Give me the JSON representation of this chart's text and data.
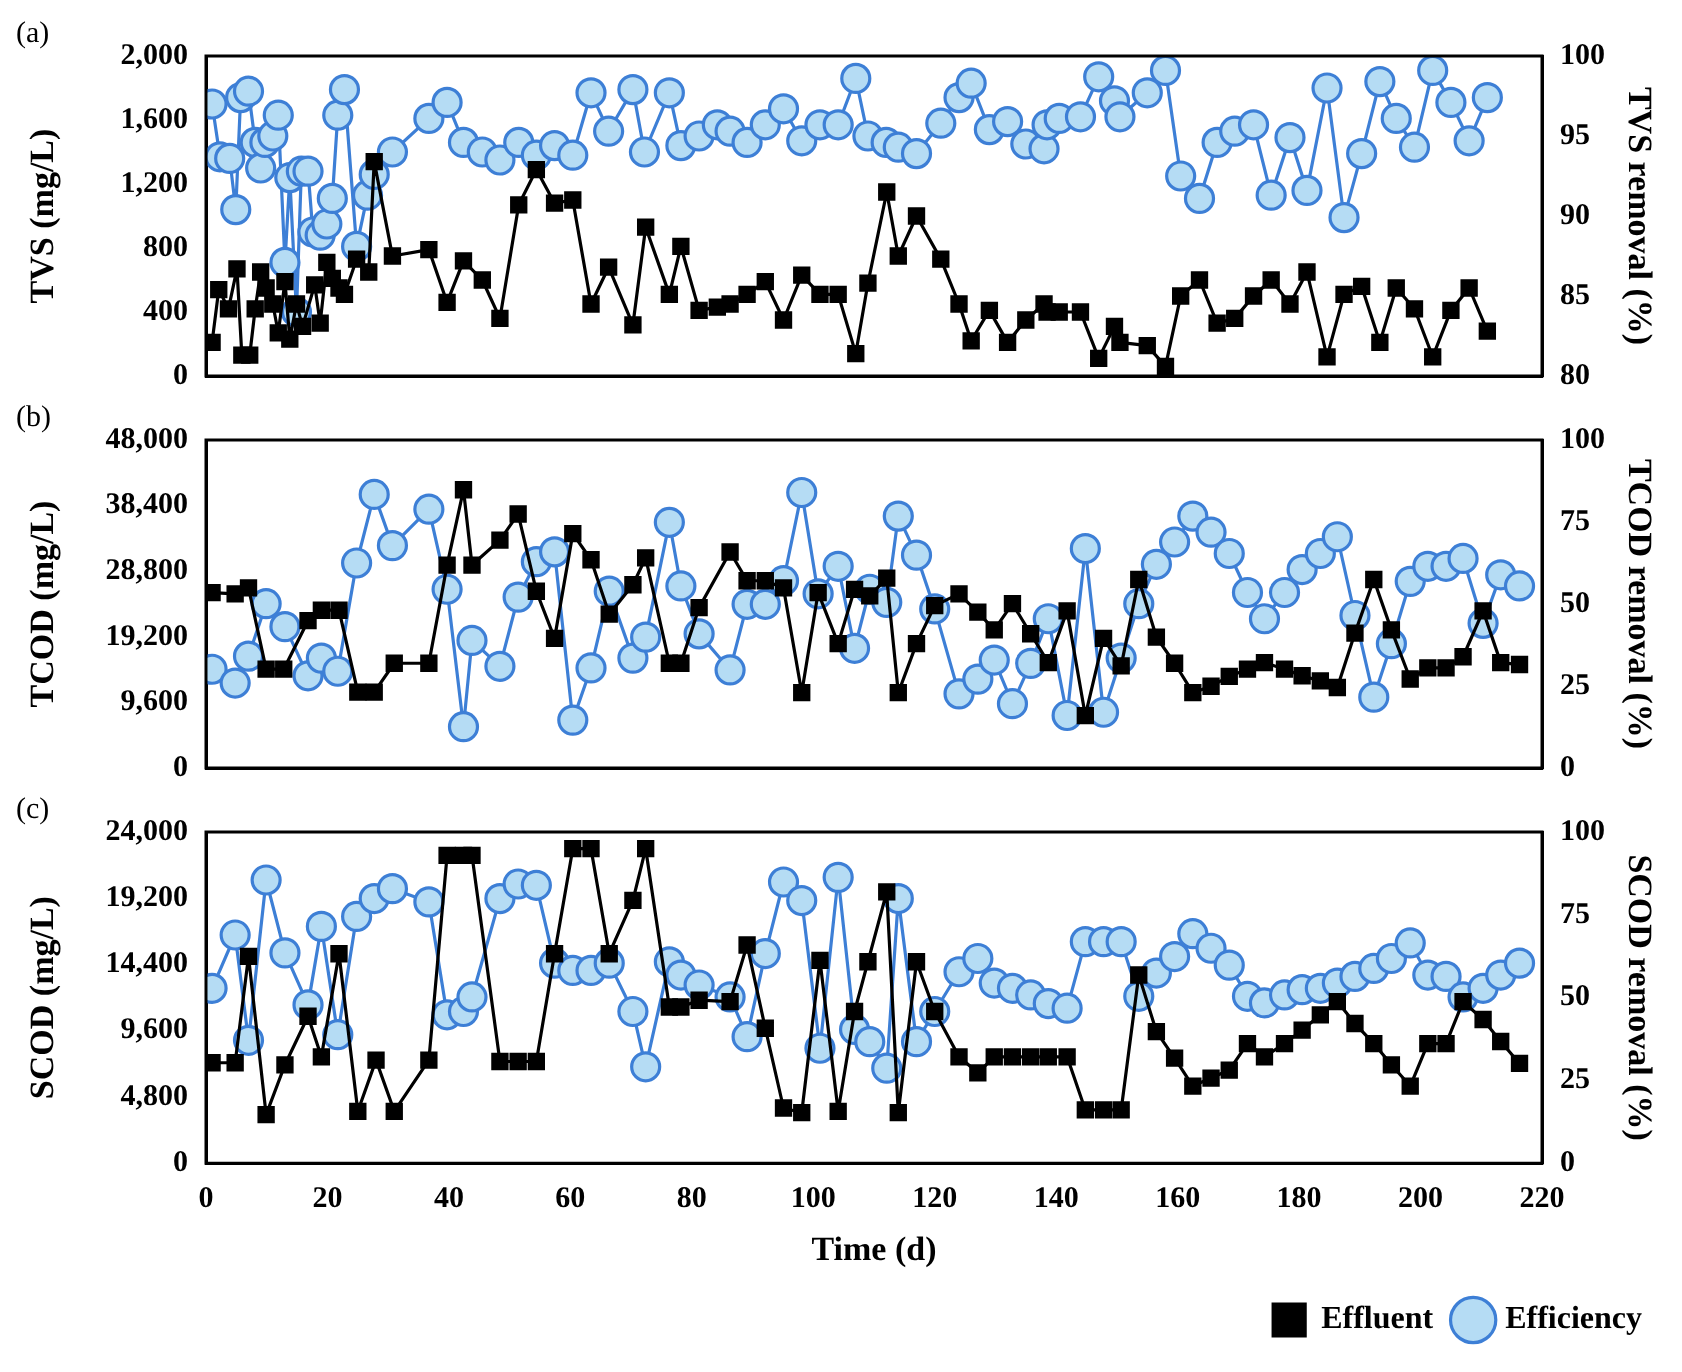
{
  "chart_data": [
    {
      "type": "line",
      "title": "(a)",
      "ylabel": "TVS (mg/L)",
      "y2label": "TVS removal (%)",
      "xlim": [
        0,
        220
      ],
      "xticks": [
        0,
        20,
        40,
        60,
        80,
        100,
        120,
        140,
        160,
        180,
        200,
        220
      ],
      "ylim": [
        0,
        2000
      ],
      "yticks": [
        0,
        400,
        800,
        {
          "value": 1200,
          "label": "1,200"
        },
        {
          "value": 1600,
          "label": "1,600"
        },
        {
          "value": 2000,
          "label": "2,000"
        }
      ],
      "y2lim": [
        80,
        100
      ],
      "y2ticks": [
        80,
        85,
        90,
        95,
        100
      ],
      "tick_labels": "y",
      "series": [
        {
          "color": "#000000",
          "marker": "square",
          "x": [
            1,
            2.1,
            3.7,
            5.1,
            5.9,
            7.2,
            8.1,
            9,
            9.9,
            11,
            11.9,
            13,
            13.8,
            14.9,
            15.9,
            17.9,
            18.8,
            19.9,
            20.8,
            21.9,
            22.8,
            24.8,
            26.8,
            27.7,
            30.7,
            36.7,
            39.7,
            42.4,
            45.5,
            48.4,
            51.5,
            54.4,
            57.4,
            60.4,
            63.4,
            66.3,
            70.3,
            72.4,
            76.3,
            78.2,
            81.2,
            84.2,
            86.3,
            89.1,
            92.1,
            95.1,
            98.1,
            101.1,
            104.1,
            107,
            109,
            112.1,
            114,
            117,
            121,
            124,
            126,
            129,
            132,
            135,
            138,
            138.5,
            140.5,
            144,
            147,
            149.6,
            150.5,
            155,
            158,
            160.5,
            163.6,
            166.5,
            169.4,
            172.5,
            175.4,
            178.5,
            181.3,
            184.6,
            187.4,
            190.3,
            193.3,
            196,
            199,
            202,
            205,
            208,
            211
          ],
          "values": [
            210,
            540,
            420,
            670,
            130,
            130,
            420,
            650,
            550,
            450,
            270,
            590,
            230,
            450,
            310,
            570,
            330,
            710,
            610,
            550,
            510,
            730,
            650,
            1340,
            750,
            790,
            460,
            720,
            600,
            360,
            1070,
            1290,
            1080,
            1100,
            450,
            680,
            320,
            930,
            510,
            810,
            410,
            430,
            450,
            510,
            590,
            350,
            630,
            510,
            510,
            140,
            580,
            1150,
            750,
            1000,
            730,
            450,
            220,
            410,
            210,
            350,
            450,
            400,
            400,
            400,
            110,
            310,
            210,
            190,
            60,
            500,
            600,
            330,
            360,
            500,
            600,
            450,
            650,
            120,
            510,
            560,
            210,
            550,
            420,
            120,
            410,
            550,
            280
          ]
        },
        {
          "color": "#3d7fd6",
          "marker": "circle",
          "axis": "y2",
          "x": [
            1,
            2.3,
            3.9,
            4.9,
            5.7,
            7,
            8.1,
            9,
            9.7,
            11,
            11.9,
            13,
            13.8,
            14.9,
            15.7,
            16.8,
            17.6,
            18.8,
            19.9,
            20.8,
            21.7,
            22.8,
            24.8,
            26.6,
            27.7,
            30.7,
            36.7,
            39.7,
            42.4,
            45.5,
            48.4,
            51.5,
            54.4,
            57.4,
            60.4,
            63.4,
            66.3,
            70.3,
            72.2,
            76.3,
            78.2,
            81.2,
            84.2,
            86.3,
            89.1,
            92.1,
            95.1,
            98.1,
            101.1,
            104.1,
            107,
            109,
            112,
            114,
            117,
            121,
            124,
            126,
            129,
            132,
            135,
            138,
            138.5,
            140.5,
            144,
            147,
            149.6,
            150.5,
            155,
            158,
            160.5,
            163.6,
            166.5,
            169.4,
            172.5,
            175.4,
            178.5,
            181.3,
            184.6,
            187.4,
            190.3,
            193.3,
            196,
            199,
            202,
            205,
            208,
            211
          ],
          "values": [
            97,
            93.7,
            93.6,
            90.4,
            97.4,
            97.8,
            94.6,
            93,
            94.6,
            95,
            96.3,
            87.1,
            92.4,
            84,
            92.8,
            92.8,
            89,
            88.8,
            89.5,
            91.1,
            96.3,
            97.9,
            88.1,
            91.3,
            92.6,
            94,
            96.1,
            97.1,
            94.6,
            94,
            93.5,
            94.6,
            93.8,
            94.4,
            93.8,
            97.7,
            95.3,
            97.9,
            94,
            97.7,
            94.4,
            95,
            95.7,
            95.3,
            94.6,
            95.7,
            96.7,
            94.7,
            95.7,
            95.7,
            98.6,
            95,
            94.6,
            94.3,
            93.9,
            95.8,
            97.4,
            98.3,
            95.4,
            95.9,
            94.5,
            94.2,
            95.7,
            96.1,
            96.2,
            98.7,
            97.2,
            96.2,
            97.7,
            99.1,
            92.5,
            91.1,
            94.6,
            95.3,
            95.7,
            91.3,
            94.9,
            91.6,
            98,
            89.9,
            93.9,
            98.4,
            96.1,
            94.3,
            99.1,
            97.1,
            94.7,
            97.4
          ]
        }
      ]
    },
    {
      "type": "line",
      "title": "(b)",
      "ylabel": "TCOD (mg/L)",
      "y2label": "TCOD removal (%)",
      "xlim": [
        0,
        220
      ],
      "xticks": [
        0,
        20,
        40,
        60,
        80,
        100,
        120,
        140,
        160,
        180,
        200,
        220
      ],
      "ylim": [
        0,
        48000
      ],
      "yticks": [
        0,
        {
          "value": 9600,
          "label": "9,600"
        },
        {
          "value": 19200,
          "label": "19,200"
        },
        {
          "value": 28800,
          "label": "28,800"
        },
        {
          "value": 38400,
          "label": "38,400"
        },
        {
          "value": 48000,
          "label": "48,000"
        }
      ],
      "y2lim": [
        0,
        100
      ],
      "y2ticks": [
        0,
        25,
        50,
        75,
        100
      ],
      "tick_labels": "y",
      "series": [
        {
          "color": "#000000",
          "marker": "square",
          "x": [
            1,
            4.8,
            7,
            9.9,
            12.8,
            16.8,
            19,
            21.9,
            25,
            27.7,
            31,
            36.7,
            39.7,
            42.4,
            43.8,
            48.4,
            51.4,
            54.4,
            57.4,
            60.4,
            63.4,
            66.4,
            70.3,
            72.4,
            76.3,
            78.2,
            81.2,
            86.3,
            89.1,
            92.1,
            95.1,
            98.1,
            100.8,
            104.1,
            106.8,
            109.3,
            112.1,
            114,
            117,
            120,
            124,
            127.1,
            129.8,
            132.8,
            135.8,
            138.7,
            141.8,
            144.8,
            147.8,
            150.7,
            153.6,
            156.5,
            159.5,
            162.5,
            165.5,
            168.5,
            171.5,
            174.3,
            177.6,
            180.5,
            183.5,
            186.3,
            189.2,
            192.3,
            195.2,
            198.3,
            201.2,
            204.2,
            207,
            210.3,
            213.2,
            216.3
          ],
          "values": [
            25670,
            25490,
            26350,
            14460,
            14460,
            21560,
            23090,
            23090,
            11110,
            11110,
            15330,
            15330,
            29700,
            40720,
            29700,
            33340,
            37170,
            25870,
            18970,
            34300,
            30470,
            22510,
            26820,
            30750,
            15330,
            15330,
            23470,
            31610,
            27400,
            27400,
            26350,
            11020,
            25670,
            18200,
            26150,
            25200,
            27780,
            11020,
            18200,
            23760,
            25490,
            22800,
            20210,
            24050,
            19640,
            15420,
            22990,
            7660,
            18970,
            14950,
            27590,
            19160,
            15330,
            11020,
            11970,
            13410,
            14460,
            15420,
            14460,
            13500,
            12740,
            11780,
            19740,
            27590,
            20210,
            13030,
            14660,
            14660,
            16280,
            22990,
            15420,
            15140
          ]
        },
        {
          "color": "#3d7fd6",
          "marker": "circle",
          "axis": "y2",
          "x": [
            1,
            4.8,
            7,
            9.9,
            13,
            16.8,
            19,
            21.7,
            24.8,
            27.7,
            30.7,
            36.7,
            39.7,
            42.4,
            43.8,
            48.4,
            51.4,
            54.4,
            57.4,
            60.4,
            63.4,
            66.4,
            70.3,
            72.4,
            76.3,
            78.2,
            81.2,
            86.3,
            89.1,
            92.1,
            95.1,
            98.1,
            100.8,
            104.1,
            106.8,
            109.3,
            112.1,
            114,
            117,
            120,
            124,
            127.1,
            129.8,
            132.8,
            135.8,
            138.7,
            141.8,
            144.8,
            147.8,
            150.7,
            153.6,
            156.5,
            159.5,
            162.5,
            165.5,
            168.5,
            171.5,
            174.3,
            177.6,
            180.5,
            183.5,
            186.3,
            189.2,
            192.3,
            195.2,
            198.3,
            201.2,
            204.2,
            207,
            210.3,
            213.2,
            216.3
          ],
          "values": [
            30.1,
            25.9,
            34.1,
            50.1,
            43.1,
            28.1,
            33.5,
            29.5,
            62.5,
            83.4,
            67.8,
            78.9,
            54.5,
            12.6,
            38.9,
            31,
            52.1,
            62.9,
            65.9,
            14.6,
            30.5,
            53.9,
            33.5,
            39.9,
            74.9,
            55.5,
            40.9,
            29.9,
            49.9,
            49.9,
            57.1,
            84,
            53.1,
            61.5,
            36.5,
            54.5,
            50.5,
            76.8,
            64.9,
            48.5,
            22.6,
            27.1,
            32.9,
            19.6,
            31.9,
            45.5,
            16,
            66.9,
            17,
            33.5,
            50.1,
            62.1,
            68.9,
            76.8,
            71.9,
            65.4,
            53.5,
            45.5,
            53.5,
            60.5,
            65.4,
            70.5,
            46.5,
            21.6,
            37.9,
            56.9,
            61.5,
            61.5,
            63.9,
            44.1,
            58.9,
            55.5
          ]
        }
      ]
    },
    {
      "type": "line",
      "title": "(c)",
      "ylabel": "SCOD (mg/L)",
      "y2label": "SCOD removal (%)",
      "xlabel": "Time (d)",
      "xlim": [
        0,
        220
      ],
      "xticks": [
        0,
        20,
        40,
        60,
        80,
        100,
        120,
        140,
        160,
        180,
        200,
        220
      ],
      "ylim": [
        0,
        24000
      ],
      "yticks": [
        0,
        {
          "value": 4800,
          "label": "4,800"
        },
        {
          "value": 9600,
          "label": "9,600"
        },
        {
          "value": 14400,
          "label": "14,400"
        },
        {
          "value": 19200,
          "label": "19,200"
        },
        {
          "value": 24000,
          "label": "24,000"
        }
      ],
      "y2lim": [
        0,
        100
      ],
      "y2ticks": [
        0,
        25,
        50,
        75,
        100
      ],
      "legend": "bottom right",
      "series": [
        {
          "name": "Effluent",
          "color": "#000000",
          "marker": "square",
          "x": [
            1,
            4.8,
            7,
            9.9,
            13,
            16.8,
            19,
            21.9,
            25,
            28,
            31,
            36.7,
            39.7,
            42.4,
            43.8,
            48.4,
            51.4,
            54.4,
            57.4,
            60.4,
            63.4,
            66.4,
            70.3,
            72.4,
            76.3,
            78.2,
            81.2,
            86.3,
            89.1,
            92.1,
            95.1,
            98.1,
            101.1,
            104.1,
            106.8,
            109,
            112.1,
            114,
            117,
            120,
            124,
            127.1,
            129.8,
            132.8,
            135.8,
            138.7,
            141.8,
            144.8,
            147.8,
            150.7,
            153.6,
            156.5,
            159.5,
            162.5,
            165.5,
            168.5,
            171.5,
            174.3,
            177.6,
            180.5,
            183.5,
            186.3,
            189.2,
            192.3,
            195.2,
            198.3,
            201.2,
            204.2,
            207,
            210.3,
            213.2,
            216.3
          ],
          "values": [
            7280,
            7280,
            14990,
            3520,
            7130,
            10650,
            7710,
            15180,
            3760,
            7470,
            3760,
            7470,
            22310,
            22310,
            22310,
            7370,
            7370,
            7370,
            15180,
            22790,
            22790,
            15180,
            19040,
            22790,
            11320,
            11320,
            11810,
            11710,
            15810,
            9780,
            4000,
            3660,
            14700,
            3760,
            10990,
            14600,
            19660,
            3660,
            14600,
            10990,
            7710,
            6550,
            7710,
            7710,
            7710,
            7710,
            7710,
            3860,
            3860,
            3860,
            13640,
            9540,
            7610,
            5590,
            6170,
            6750,
            8670,
            7710,
            8670,
            9640,
            10750,
            11710,
            10120,
            8670,
            7130,
            5590,
            8670,
            8670,
            11710,
            10410,
            8820,
            7230
          ]
        },
        {
          "name": "Efficiency",
          "color": "#3d7fd6",
          "marker": "circle",
          "axis": "y2",
          "x": [
            1,
            4.8,
            7,
            9.9,
            13,
            16.8,
            19,
            21.7,
            24.8,
            27.7,
            30.7,
            36.7,
            39.7,
            42.4,
            43.8,
            48.4,
            51.4,
            54.4,
            57.4,
            60.4,
            63.4,
            66.4,
            70.3,
            72.4,
            76.3,
            78.2,
            81.2,
            86.3,
            89.1,
            92.1,
            95.1,
            98.1,
            101.1,
            104.1,
            106.8,
            109.3,
            112.1,
            114,
            117,
            120,
            124,
            127.1,
            129.8,
            132.8,
            135.8,
            138.7,
            141.8,
            144.8,
            147.8,
            150.7,
            153.6,
            156.5,
            159.5,
            162.5,
            165.5,
            168.5,
            171.5,
            174.3,
            177.6,
            180.5,
            183.5,
            186.3,
            189.2,
            192.3,
            195.2,
            198.3,
            201.2,
            204.2,
            207,
            210.3,
            213.2,
            216.3
          ],
          "values": [
            52.8,
            68.9,
            37.1,
            85.5,
            63.5,
            47.8,
            71.5,
            38.8,
            74.5,
            79.9,
            82.9,
            78.9,
            44.8,
            45.8,
            50.2,
            79.9,
            84.3,
            83.9,
            60.4,
            58.2,
            58.2,
            60.4,
            45.8,
            29.1,
            60.8,
            56.8,
            53.8,
            50.2,
            38.2,
            63.3,
            84.9,
            79.3,
            34.7,
            86.3,
            40.4,
            36.7,
            28.7,
            79.9,
            36.7,
            45.8,
            57.8,
            61.8,
            54.4,
            52.8,
            50.8,
            48.2,
            46.8,
            66.9,
            66.9,
            66.9,
            50.4,
            57.4,
            62.4,
            69.3,
            64.9,
            59.8,
            50.4,
            48.4,
            50.8,
            52.4,
            52.8,
            54.4,
            56.4,
            58.8,
            61.8,
            66.5,
            56.8,
            56.4,
            50.2,
            52.8,
            56.8,
            60.4
          ]
        }
      ]
    }
  ]
}
